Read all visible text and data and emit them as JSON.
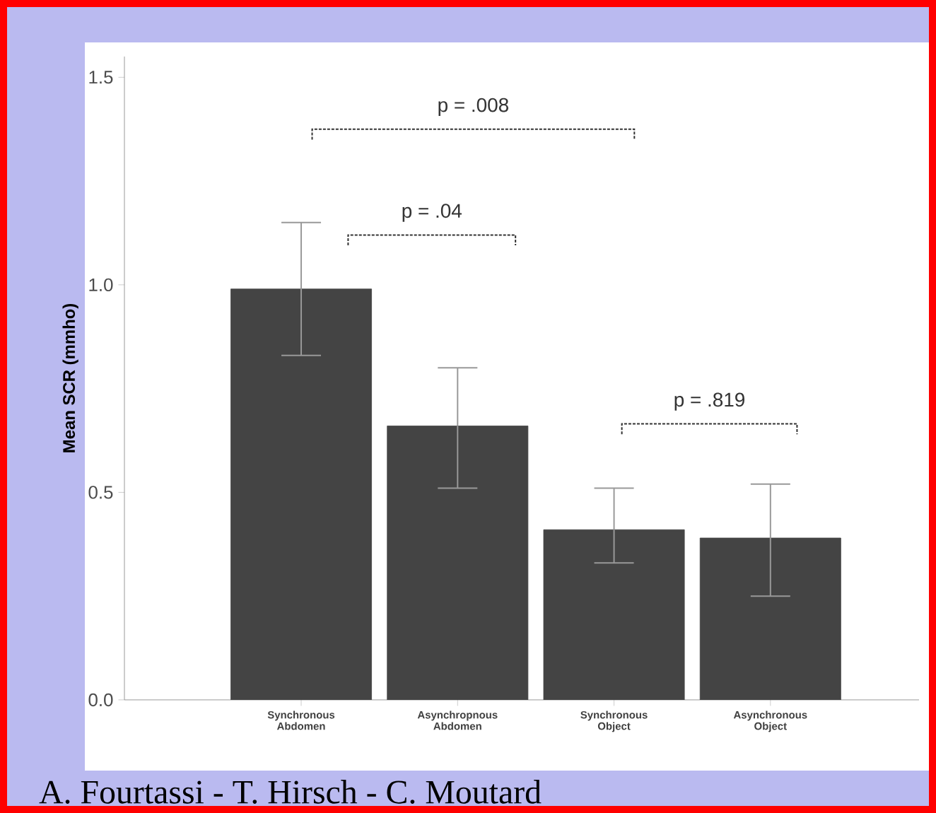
{
  "chart_data": {
    "type": "bar",
    "ylabel": "Mean SCR (mmho)",
    "categories": [
      "Synchronous Abdomen",
      "Asynchropnous Abdomen",
      "Synchronous Object",
      "Asynchronous Object"
    ],
    "values": [
      0.99,
      0.66,
      0.41,
      0.39
    ],
    "errors": [
      [
        0.83,
        1.15
      ],
      [
        0.51,
        0.8
      ],
      [
        0.33,
        0.51
      ],
      [
        0.25,
        0.52
      ]
    ],
    "color": "#444444",
    "ylim": [
      0,
      1.55
    ],
    "yticks": [
      {
        "value": 0,
        "label": "0.0"
      },
      0.5,
      {
        "value": 1,
        "label": "1.0"
      },
      1.5
    ],
    "grid": false,
    "annotations": [
      "p = .008",
      "p = .04",
      "p = .819",
      "A. Fourtassi - T. Hirsch - C. Moutard"
    ]
  }
}
